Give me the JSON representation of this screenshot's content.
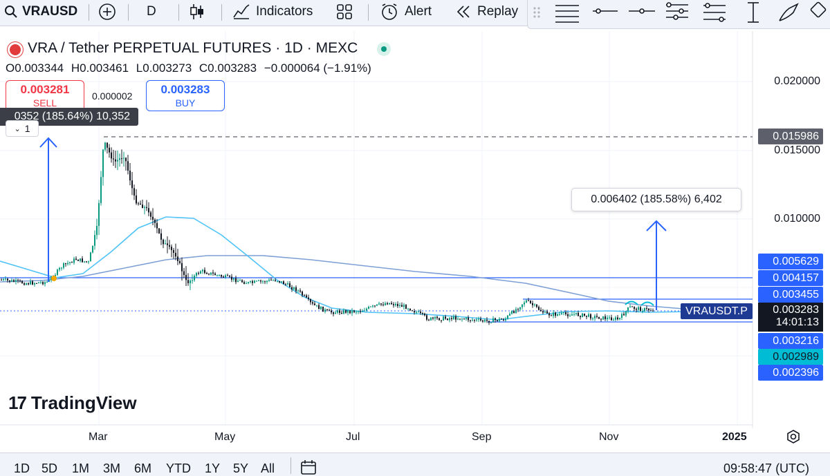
{
  "toolbar": {
    "symbol": "VRAUSD",
    "interval": "D",
    "indicators_label": "Indicators",
    "alert_label": "Alert",
    "replay_label": "Replay",
    "icons": [
      "search-icon",
      "add-symbol-icon",
      "candles-icon",
      "indicators-icon",
      "layout-icon",
      "alert-icon",
      "replay-icon",
      "grid-handle-icon",
      "horizontal-ray-icon",
      "horizontal-line-icon",
      "ray-icon",
      "parallel-channel-icon",
      "regression-icon",
      "fib-icon",
      "measure-icon",
      "brush-icon",
      "erase-icon"
    ]
  },
  "legend": {
    "title": "VRA / Tether PERPETUAL FUTURES · 1D · MEXC",
    "open": "O0.003344",
    "high": "H0.003461",
    "low": "L0.003273",
    "close": "C0.003283",
    "change": "−0.000064 (−1.91%)"
  },
  "trade": {
    "sell_price": "0.003281",
    "sell_label": "SELL",
    "buy_price": "0.003283",
    "buy_label": "BUY",
    "spread": "0.000002"
  },
  "measure_left": {
    "label": "0352 (185.64%) 10,352",
    "count": "1"
  },
  "measure_right": {
    "label": "0.006402 (185.58%) 6,402"
  },
  "price_axis": {
    "labels": [
      "0.020000",
      "0.015000",
      "0.010000"
    ],
    "tags": [
      {
        "text": "0.015986",
        "color": "#5d606b"
      },
      {
        "text": "0.005629",
        "color": "#2962ff"
      },
      {
        "text": "0.004157",
        "color": "#2962ff"
      },
      {
        "text": "0.003455",
        "color": "#2962ff"
      },
      {
        "text": "0.003283",
        "color": "#131722"
      },
      {
        "text": "0.003216",
        "color": "#2962ff"
      },
      {
        "text": "0.002989",
        "color": "#00bcd4"
      },
      {
        "text": "0.002396",
        "color": "#2962ff"
      }
    ],
    "symbol_tag": "VRAUSDT.P",
    "countdown": "14:01:13"
  },
  "time_axis": {
    "labels": [
      "Mar",
      "May",
      "Jul",
      "Sep",
      "Nov",
      "2025"
    ]
  },
  "watermark": "TradingView",
  "bottombar": {
    "ranges": [
      "1D",
      "5D",
      "1M",
      "3M",
      "6M",
      "YTD",
      "1Y",
      "5Y",
      "All"
    ],
    "clock": "09:58:47 (UTC)"
  },
  "colors": {
    "up": "#089981",
    "down": "#131722",
    "ma_fast": "#4fc3f7",
    "ma_slow": "#7e9fd6",
    "line_blue": "#2962ff"
  }
}
